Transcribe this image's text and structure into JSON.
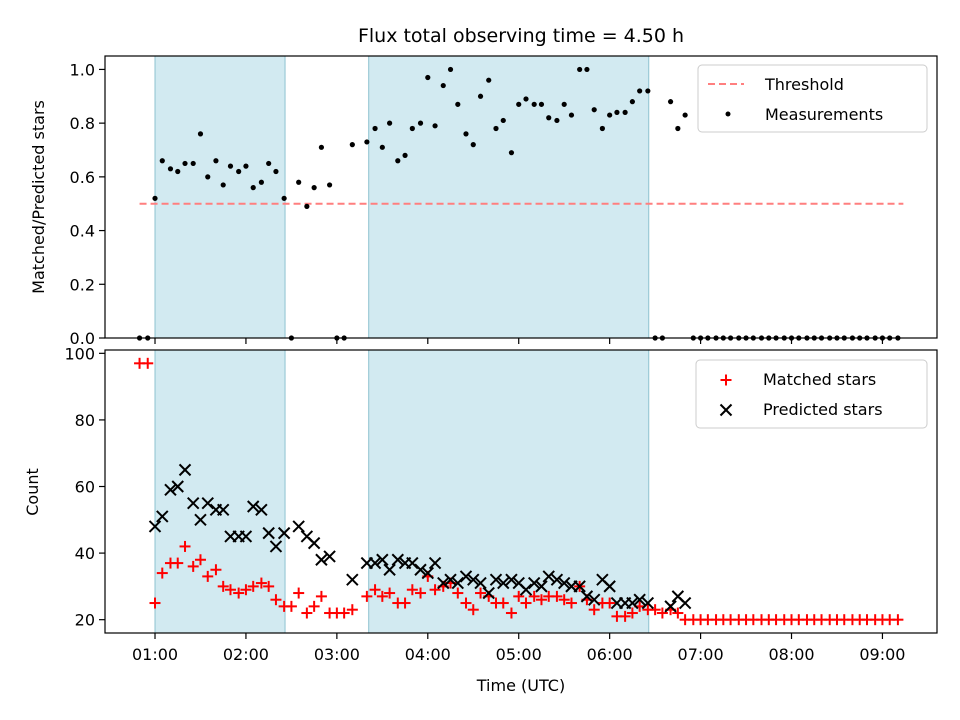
{
  "title": "Flux total observing time = 4.50 h",
  "colors": {
    "shade": "#add8e6",
    "threshold": "#ff7f7f",
    "measurement": "#000000",
    "matched": "#ff0000",
    "predicted": "#000000"
  },
  "chart_data": [
    {
      "type": "scatter",
      "panel": "top",
      "xlabel": "",
      "ylabel": "Matched/Predicted stars",
      "ylim": [
        0,
        1.05
      ],
      "yticks": [
        "0.0",
        "0.2",
        "0.4",
        "0.6",
        "0.8",
        "1.0"
      ],
      "ytick_values": [
        0,
        0.2,
        0.4,
        0.6,
        0.8,
        1.0
      ],
      "legend": [
        "Threshold",
        "Measurements"
      ],
      "legend_position": "top-right",
      "threshold": {
        "name": "Threshold",
        "value": 0.5,
        "x_range": [
          0.83,
          9.23
        ]
      },
      "shaded_intervals": [
        [
          1.0,
          2.43
        ],
        [
          3.35,
          6.43
        ]
      ],
      "series": [
        {
          "name": "Measurements",
          "x": [
            0.83,
            0.92,
            1.0,
            1.08,
            1.17,
            1.25,
            1.33,
            1.42,
            1.5,
            1.58,
            1.67,
            1.75,
            1.83,
            1.92,
            2.0,
            2.08,
            2.17,
            2.25,
            2.33,
            2.42,
            2.5,
            2.58,
            2.67,
            2.75,
            2.83,
            2.92,
            3.0,
            3.08,
            3.17,
            3.33,
            3.42,
            3.5,
            3.58,
            3.67,
            3.75,
            3.83,
            3.92,
            4.0,
            4.08,
            4.17,
            4.25,
            4.33,
            4.42,
            4.5,
            4.58,
            4.67,
            4.75,
            4.83,
            4.92,
            5.0,
            5.08,
            5.17,
            5.25,
            5.33,
            5.42,
            5.5,
            5.58,
            5.67,
            5.75,
            5.83,
            5.92,
            6.0,
            6.08,
            6.17,
            6.25,
            6.33,
            6.42,
            6.5,
            6.58,
            6.67,
            6.75,
            6.83,
            6.92,
            7.0,
            7.08,
            7.17,
            7.25,
            7.33,
            7.42,
            7.5,
            7.58,
            7.67,
            7.75,
            7.83,
            7.92,
            8.0,
            8.08,
            8.17,
            8.25,
            8.33,
            8.42,
            8.5,
            8.58,
            8.67,
            8.75,
            8.83,
            8.92,
            9.0,
            9.08,
            9.17
          ],
          "y": [
            0.0,
            0.0,
            0.52,
            0.66,
            0.63,
            0.62,
            0.65,
            0.65,
            0.76,
            0.6,
            0.66,
            0.57,
            0.64,
            0.62,
            0.64,
            0.56,
            0.58,
            0.65,
            0.62,
            0.52,
            0.0,
            0.58,
            0.49,
            0.56,
            0.71,
            0.57,
            0.0,
            0.0,
            0.72,
            0.73,
            0.78,
            0.71,
            0.8,
            0.66,
            0.68,
            0.78,
            0.8,
            0.97,
            0.79,
            0.94,
            1.0,
            0.87,
            0.76,
            0.72,
            0.9,
            0.96,
            0.78,
            0.81,
            0.69,
            0.87,
            0.89,
            0.87,
            0.87,
            0.82,
            0.81,
            0.87,
            0.83,
            1.0,
            1.0,
            0.85,
            0.78,
            0.83,
            0.84,
            0.84,
            0.88,
            0.92,
            0.92,
            0.0,
            0.0,
            0.88,
            0.78,
            0.83,
            0.0,
            0.0,
            0.0,
            0.0,
            0.0,
            0.0,
            0.0,
            0.0,
            0.0,
            0.0,
            0.0,
            0.0,
            0.0,
            0.0,
            0.0,
            0.0,
            0.0,
            0.0,
            0.0,
            0.0,
            0.0,
            0.0,
            0.0,
            0.0,
            0.0,
            0.0,
            0.0,
            0.0
          ]
        }
      ]
    },
    {
      "type": "scatter",
      "panel": "bottom",
      "xlabel": "Time (UTC)",
      "ylabel": "Count",
      "xlim": [
        0.45,
        9.6
      ],
      "ylim": [
        16,
        101
      ],
      "xticks": [
        "01:00",
        "02:00",
        "03:00",
        "04:00",
        "05:00",
        "06:00",
        "07:00",
        "08:00",
        "09:00"
      ],
      "xtick_values": [
        1,
        2,
        3,
        4,
        5,
        6,
        7,
        8,
        9
      ],
      "yticks": [
        "20",
        "40",
        "60",
        "80",
        "100"
      ],
      "ytick_values": [
        20,
        40,
        60,
        80,
        100
      ],
      "legend": [
        "Matched stars",
        "Predicted stars"
      ],
      "legend_position": "top-right",
      "shaded_intervals": [
        [
          1.0,
          2.43
        ],
        [
          3.35,
          6.43
        ]
      ],
      "series": [
        {
          "name": "Matched stars",
          "x": [
            0.83,
            0.92,
            1.0,
            1.08,
            1.17,
            1.25,
            1.33,
            1.42,
            1.5,
            1.58,
            1.67,
            1.75,
            1.83,
            1.92,
            2.0,
            2.08,
            2.17,
            2.25,
            2.33,
            2.42,
            2.5,
            2.58,
            2.67,
            2.75,
            2.83,
            2.92,
            3.0,
            3.08,
            3.17,
            3.33,
            3.42,
            3.5,
            3.58,
            3.67,
            3.75,
            3.83,
            3.92,
            4.0,
            4.08,
            4.17,
            4.25,
            4.33,
            4.42,
            4.5,
            4.58,
            4.67,
            4.75,
            4.83,
            4.92,
            5.0,
            5.08,
            5.17,
            5.25,
            5.33,
            5.42,
            5.5,
            5.58,
            5.67,
            5.75,
            5.83,
            5.92,
            6.0,
            6.08,
            6.17,
            6.25,
            6.33,
            6.42,
            6.5,
            6.58,
            6.67,
            6.75,
            6.83,
            6.92,
            7.0,
            7.08,
            7.17,
            7.25,
            7.33,
            7.42,
            7.5,
            7.58,
            7.67,
            7.75,
            7.83,
            7.92,
            8.0,
            8.08,
            8.17,
            8.25,
            8.33,
            8.42,
            8.5,
            8.58,
            8.67,
            8.75,
            8.83,
            8.92,
            9.0,
            9.08,
            9.17
          ],
          "y": [
            97,
            97,
            25,
            34,
            37,
            37,
            42,
            36,
            38,
            33,
            35,
            30,
            29,
            28,
            29,
            30,
            31,
            30,
            26,
            24,
            24,
            28,
            22,
            24,
            27,
            22,
            22,
            22,
            23,
            27,
            29,
            27,
            28,
            25,
            25,
            29,
            28,
            33,
            29,
            30,
            31,
            28,
            25,
            23,
            28,
            27,
            25,
            25,
            22,
            27,
            25,
            27,
            26,
            27,
            27,
            26,
            25,
            30,
            26,
            23,
            25,
            25,
            21,
            21,
            22,
            24,
            23,
            23,
            22,
            23,
            22,
            20,
            20,
            20,
            20,
            20,
            20,
            20,
            20,
            20,
            20,
            20,
            20,
            20,
            20,
            20,
            20,
            20,
            20,
            20,
            20,
            20,
            20,
            20,
            20,
            20,
            20,
            20,
            20,
            20
          ]
        },
        {
          "name": "Predicted stars",
          "x": [
            1.0,
            1.08,
            1.17,
            1.25,
            1.33,
            1.42,
            1.5,
            1.58,
            1.67,
            1.75,
            1.83,
            1.92,
            2.0,
            2.08,
            2.17,
            2.25,
            2.33,
            2.42,
            2.58,
            2.67,
            2.75,
            2.83,
            2.92,
            3.17,
            3.33,
            3.42,
            3.5,
            3.58,
            3.67,
            3.75,
            3.83,
            3.92,
            4.0,
            4.08,
            4.17,
            4.25,
            4.33,
            4.42,
            4.5,
            4.58,
            4.67,
            4.75,
            4.83,
            4.92,
            5.0,
            5.08,
            5.17,
            5.25,
            5.33,
            5.42,
            5.5,
            5.58,
            5.67,
            5.75,
            5.83,
            5.92,
            6.0,
            6.08,
            6.17,
            6.25,
            6.33,
            6.42,
            6.67,
            6.75,
            6.83
          ],
          "y": [
            48,
            51,
            59,
            60,
            65,
            55,
            50,
            55,
            53,
            53,
            45,
            45,
            45,
            54,
            53,
            46,
            42,
            46,
            48,
            45,
            43,
            38,
            39,
            32,
            37,
            37,
            38,
            35,
            38,
            37,
            37,
            35,
            34,
            37,
            31,
            32,
            31,
            33,
            32,
            31,
            28,
            32,
            31,
            32,
            31,
            29,
            31,
            30,
            33,
            32,
            31,
            30,
            30,
            27,
            26,
            32,
            30,
            25,
            25,
            25,
            26,
            25,
            24,
            27,
            25
          ]
        }
      ]
    }
  ]
}
